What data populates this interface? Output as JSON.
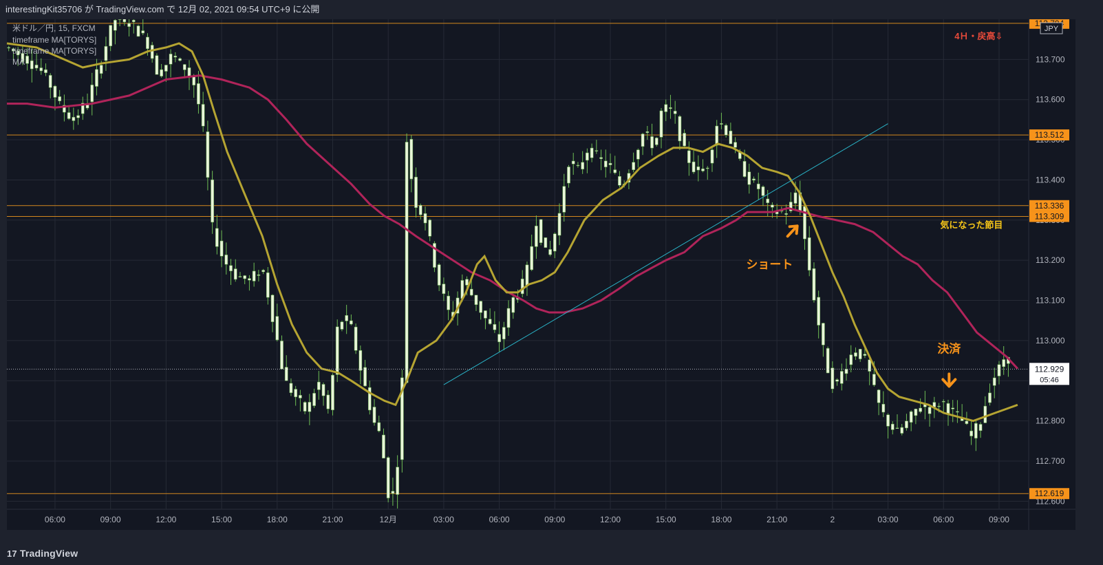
{
  "header": {
    "publish_line": "interestingKit35706 が TradingView.com で 12月 02, 2021 09:54 UTC+9 に公開"
  },
  "legend": {
    "symbol_line": "米ドル／円, 15, FXCM",
    "ma_line_1": "timeframe MA[TORYS]",
    "ma_line_2": "timeframe MA[TORYS]",
    "ma_line_3": "MA"
  },
  "footer": {
    "brand": "TradingView"
  },
  "colors": {
    "background": "#131722",
    "grid": "#262a36",
    "candle_body": "#e8f5d8",
    "candle_wick": "#6fbf55",
    "ma_fast": "#b5a432",
    "ma_slow": "#b0245a",
    "level_line": "#d4881e",
    "trendline": "#2ab4c8",
    "annotation_orange": "#f7931a",
    "annotation_red": "#e84a3a",
    "annotation_yellow": "#f5c518",
    "price_tag_bg": "#f7931a"
  },
  "chart_data": {
    "type": "candlestick",
    "symbol": "米ドル／円",
    "interval": "15",
    "source": "FXCM",
    "currency": "JPY",
    "ylim": [
      112.58,
      113.8
    ],
    "y_ticks": [
      "113.800",
      "113.700",
      "113.600",
      "113.500",
      "113.400",
      "113.300",
      "113.200",
      "113.100",
      "113.000",
      "112.900",
      "112.800",
      "112.700",
      "112.600"
    ],
    "x_ticks": [
      {
        "label": "06:00",
        "hours": 6
      },
      {
        "label": "09:00",
        "hours": 9
      },
      {
        "label": "12:00",
        "hours": 12
      },
      {
        "label": "15:00",
        "hours": 15
      },
      {
        "label": "18:00",
        "hours": 18
      },
      {
        "label": "21:00",
        "hours": 21
      },
      {
        "label": "12月",
        "hours": 24
      },
      {
        "label": "03:00",
        "hours": 27
      },
      {
        "label": "06:00",
        "hours": 30
      },
      {
        "label": "09:00",
        "hours": 33
      },
      {
        "label": "12:00",
        "hours": 36
      },
      {
        "label": "15:00",
        "hours": 39
      },
      {
        "label": "18:00",
        "hours": 42
      },
      {
        "label": "21:00",
        "hours": 45
      },
      {
        "label": "2",
        "hours": 48
      },
      {
        "label": "03:00",
        "hours": 51
      },
      {
        "label": "06:00",
        "hours": 54
      },
      {
        "label": "09:00",
        "hours": 57
      }
    ],
    "x_range_hours": [
      3.4,
      58.6
    ],
    "last_hours": 57.7,
    "current_price": "112.929",
    "countdown": "05:46",
    "price_path": [
      [
        3.4,
        113.73
      ],
      [
        4.5,
        113.7
      ],
      [
        5.5,
        113.66
      ],
      [
        6.3,
        113.58
      ],
      [
        7.0,
        113.55
      ],
      [
        7.8,
        113.6
      ],
      [
        8.5,
        113.7
      ],
      [
        9.2,
        113.8
      ],
      [
        10.2,
        113.79
      ],
      [
        11.0,
        113.74
      ],
      [
        11.6,
        113.66
      ],
      [
        12.3,
        113.71
      ],
      [
        13.0,
        113.68
      ],
      [
        13.6,
        113.63
      ],
      [
        14.0,
        113.52
      ],
      [
        14.5,
        113.28
      ],
      [
        15.1,
        113.2
      ],
      [
        15.8,
        113.16
      ],
      [
        16.5,
        113.15
      ],
      [
        17.2,
        113.18
      ],
      [
        17.8,
        113.05
      ],
      [
        18.4,
        112.9
      ],
      [
        19.0,
        112.86
      ],
      [
        19.6,
        112.82
      ],
      [
        20.2,
        112.9
      ],
      [
        20.8,
        112.82
      ],
      [
        21.3,
        113.05
      ],
      [
        21.9,
        113.05
      ],
      [
        22.5,
        112.93
      ],
      [
        23.2,
        112.8
      ],
      [
        23.6,
        112.76
      ],
      [
        24.0,
        112.62
      ],
      [
        24.3,
        112.62
      ],
      [
        24.7,
        112.78
      ],
      [
        25.0,
        113.5
      ],
      [
        25.4,
        113.35
      ],
      [
        26.0,
        113.3
      ],
      [
        26.7,
        113.15
      ],
      [
        27.4,
        113.05
      ],
      [
        28.0,
        113.15
      ],
      [
        28.7,
        113.1
      ],
      [
        29.3,
        113.05
      ],
      [
        30.0,
        113.0
      ],
      [
        30.7,
        113.1
      ],
      [
        31.4,
        113.15
      ],
      [
        32.0,
        113.3
      ],
      [
        32.6,
        113.2
      ],
      [
        33.2,
        113.3
      ],
      [
        33.7,
        113.45
      ],
      [
        34.2,
        113.42
      ],
      [
        34.8,
        113.48
      ],
      [
        35.4,
        113.45
      ],
      [
        36.0,
        113.43
      ],
      [
        36.6,
        113.38
      ],
      [
        37.2,
        113.45
      ],
      [
        37.8,
        113.52
      ],
      [
        38.4,
        113.48
      ],
      [
        38.8,
        113.58
      ],
      [
        39.4,
        113.57
      ],
      [
        40.0,
        113.47
      ],
      [
        40.6,
        113.42
      ],
      [
        41.2,
        113.43
      ],
      [
        41.8,
        113.55
      ],
      [
        42.3,
        113.52
      ],
      [
        42.9,
        113.45
      ],
      [
        43.5,
        113.4
      ],
      [
        44.0,
        113.38
      ],
      [
        44.5,
        113.33
      ],
      [
        45.0,
        113.32
      ],
      [
        45.6,
        113.32
      ],
      [
        46.1,
        113.38
      ],
      [
        46.6,
        113.22
      ],
      [
        47.1,
        113.08
      ],
      [
        47.6,
        112.95
      ],
      [
        48.1,
        112.88
      ],
      [
        48.6,
        112.93
      ],
      [
        49.2,
        112.98
      ],
      [
        49.8,
        112.95
      ],
      [
        50.4,
        112.85
      ],
      [
        50.9,
        112.8
      ],
      [
        51.5,
        112.77
      ],
      [
        52.1,
        112.8
      ],
      [
        52.7,
        112.84
      ],
      [
        53.3,
        112.83
      ],
      [
        53.9,
        112.85
      ],
      [
        54.5,
        112.82
      ],
      [
        55.0,
        112.8
      ],
      [
        55.5,
        112.76
      ],
      [
        56.0,
        112.8
      ],
      [
        56.6,
        112.9
      ],
      [
        57.0,
        112.93
      ],
      [
        57.4,
        112.97
      ],
      [
        57.7,
        112.93
      ]
    ],
    "ma_fast_path": [
      [
        3.4,
        113.74
      ],
      [
        5.0,
        113.73
      ],
      [
        6.5,
        113.7
      ],
      [
        7.5,
        113.68
      ],
      [
        8.5,
        113.69
      ],
      [
        10.0,
        113.7
      ],
      [
        11.0,
        113.72
      ],
      [
        12.0,
        113.73
      ],
      [
        12.7,
        113.74
      ],
      [
        13.4,
        113.72
      ],
      [
        14.0,
        113.66
      ],
      [
        14.6,
        113.57
      ],
      [
        15.3,
        113.47
      ],
      [
        16.2,
        113.37
      ],
      [
        17.2,
        113.26
      ],
      [
        18.0,
        113.14
      ],
      [
        18.8,
        113.04
      ],
      [
        19.6,
        112.97
      ],
      [
        20.4,
        112.93
      ],
      [
        21.3,
        112.92
      ],
      [
        22.0,
        112.9
      ],
      [
        23.0,
        112.87
      ],
      [
        23.8,
        112.85
      ],
      [
        24.4,
        112.84
      ],
      [
        25.0,
        112.9
      ],
      [
        25.6,
        112.97
      ],
      [
        26.6,
        113.0
      ],
      [
        27.4,
        113.05
      ],
      [
        28.2,
        113.12
      ],
      [
        28.8,
        113.19
      ],
      [
        29.2,
        113.21
      ],
      [
        29.8,
        113.15
      ],
      [
        30.4,
        113.12
      ],
      [
        31.0,
        113.12
      ],
      [
        31.6,
        113.14
      ],
      [
        32.3,
        113.15
      ],
      [
        33.0,
        113.17
      ],
      [
        33.7,
        113.22
      ],
      [
        34.6,
        113.3
      ],
      [
        35.6,
        113.35
      ],
      [
        36.6,
        113.38
      ],
      [
        37.6,
        113.43
      ],
      [
        38.6,
        113.46
      ],
      [
        39.4,
        113.48
      ],
      [
        40.2,
        113.48
      ],
      [
        41.0,
        113.47
      ],
      [
        41.8,
        113.49
      ],
      [
        42.6,
        113.48
      ],
      [
        43.4,
        113.46
      ],
      [
        44.2,
        113.43
      ],
      [
        45.0,
        113.42
      ],
      [
        45.6,
        113.41
      ],
      [
        46.2,
        113.37
      ],
      [
        46.8,
        113.31
      ],
      [
        47.4,
        113.24
      ],
      [
        48.0,
        113.17
      ],
      [
        48.6,
        113.11
      ],
      [
        49.2,
        113.04
      ],
      [
        49.8,
        112.98
      ],
      [
        50.4,
        112.92
      ],
      [
        51.0,
        112.88
      ],
      [
        51.6,
        112.86
      ],
      [
        52.4,
        112.85
      ],
      [
        53.2,
        112.84
      ],
      [
        54.0,
        112.82
      ],
      [
        54.8,
        112.81
      ],
      [
        55.6,
        112.8
      ],
      [
        56.2,
        112.81
      ],
      [
        56.8,
        112.82
      ],
      [
        57.4,
        112.83
      ],
      [
        58.0,
        112.84
      ]
    ],
    "ma_slow_path": [
      [
        3.4,
        113.59
      ],
      [
        4.5,
        113.59
      ],
      [
        6.0,
        113.58
      ],
      [
        8.0,
        113.59
      ],
      [
        10.0,
        113.61
      ],
      [
        12.0,
        113.65
      ],
      [
        13.8,
        113.66
      ],
      [
        15.0,
        113.65
      ],
      [
        16.5,
        113.63
      ],
      [
        17.5,
        113.6
      ],
      [
        18.5,
        113.55
      ],
      [
        19.6,
        113.49
      ],
      [
        20.8,
        113.44
      ],
      [
        22.0,
        113.39
      ],
      [
        23.0,
        113.34
      ],
      [
        23.8,
        113.31
      ],
      [
        24.6,
        113.29
      ],
      [
        25.5,
        113.26
      ],
      [
        26.5,
        113.23
      ],
      [
        27.5,
        113.2
      ],
      [
        28.5,
        113.17
      ],
      [
        29.5,
        113.15
      ],
      [
        30.5,
        113.12
      ],
      [
        31.3,
        113.1
      ],
      [
        32.0,
        113.08
      ],
      [
        32.7,
        113.07
      ],
      [
        33.5,
        113.07
      ],
      [
        34.5,
        113.08
      ],
      [
        35.5,
        113.1
      ],
      [
        36.5,
        113.13
      ],
      [
        37.4,
        113.16
      ],
      [
        38.2,
        113.18
      ],
      [
        39.0,
        113.2
      ],
      [
        40.0,
        113.22
      ],
      [
        41.0,
        113.26
      ],
      [
        42.0,
        113.28
      ],
      [
        42.8,
        113.3
      ],
      [
        43.4,
        113.32
      ],
      [
        44.0,
        113.32
      ],
      [
        44.8,
        113.32
      ],
      [
        45.6,
        113.33
      ],
      [
        46.4,
        113.32
      ],
      [
        47.2,
        113.31
      ],
      [
        48.2,
        113.3
      ],
      [
        49.2,
        113.29
      ],
      [
        50.2,
        113.27
      ],
      [
        51.0,
        113.24
      ],
      [
        51.8,
        113.21
      ],
      [
        52.6,
        113.19
      ],
      [
        53.4,
        113.15
      ],
      [
        54.2,
        113.12
      ],
      [
        55.0,
        113.07
      ],
      [
        55.8,
        113.02
      ],
      [
        56.6,
        112.99
      ],
      [
        57.4,
        112.96
      ],
      [
        58.0,
        112.93
      ]
    ],
    "levels": [
      {
        "price": 113.79,
        "label": "113.794"
      },
      {
        "price": 113.512,
        "label": "113.512"
      },
      {
        "price": 113.336,
        "label": "113.336"
      },
      {
        "price": 113.309,
        "label": "113.309"
      },
      {
        "price": 112.619,
        "label": "112.619"
      }
    ],
    "trendline": {
      "from": [
        27.0,
        112.89
      ],
      "to": [
        51.0,
        113.54
      ]
    },
    "annotations": [
      {
        "text": "4Ｈ・戻高⇩",
        "hours": 57.2,
        "price": 113.75,
        "color": "red"
      },
      {
        "text": "気になった節目",
        "hours": 57.2,
        "price": 113.28,
        "color": "yellow"
      },
      {
        "text": "ショート",
        "hours": 44.6,
        "price": 113.18,
        "color": "orange"
      },
      {
        "text": "決済",
        "hours": 54.3,
        "price": 112.97,
        "color": "orange"
      }
    ],
    "arrows": [
      {
        "name": "short-entry-arrow",
        "hours": 45.8,
        "price": 113.27,
        "direction": "up-right"
      },
      {
        "name": "exit-arrow",
        "hours": 54.3,
        "price": 112.91,
        "direction": "down"
      }
    ]
  }
}
